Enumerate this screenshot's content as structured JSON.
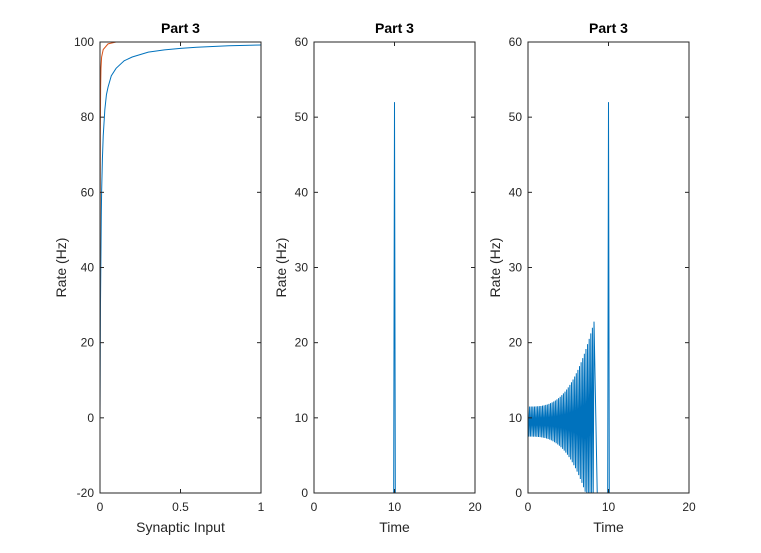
{
  "chart_data": [
    {
      "type": "line",
      "title": "Part 3",
      "xlabel": "Synaptic Input",
      "ylabel": "Rate (Hz)",
      "xlim": [
        0,
        1
      ],
      "ylim": [
        -20,
        100
      ],
      "xticks": [
        0,
        0.5,
        1
      ],
      "xtick_labels": [
        "0",
        "0.5",
        "1"
      ],
      "yticks": [
        -20,
        0,
        20,
        40,
        60,
        80,
        100
      ],
      "ytick_labels": [
        "-20",
        "0",
        "20",
        "40",
        "60",
        "80",
        "100"
      ],
      "grid": false,
      "series": [
        {
          "color": "#0072BD",
          "x": [
            0,
            0.003,
            0.005,
            0.008,
            0.01,
            0.015,
            0.02,
            0.03,
            0.04,
            0.05,
            0.07,
            0.1,
            0.15,
            0.2,
            0.3,
            0.4,
            0.5,
            0.6,
            0.7,
            0.8,
            0.9,
            1.0
          ],
          "y": [
            0,
            30,
            40,
            54,
            60,
            69,
            75,
            82,
            86,
            88,
            91,
            93,
            95,
            96,
            97.3,
            97.9,
            98.3,
            98.6,
            98.8,
            99.0,
            99.1,
            99.2
          ]
        },
        {
          "color": "#D95319",
          "x": [
            0,
            0.001,
            0.002,
            0.004,
            0.006,
            0.01,
            0.02,
            0.05,
            0.1
          ],
          "y": [
            0,
            50,
            75,
            88,
            93,
            96,
            98,
            99.5,
            100
          ]
        }
      ]
    },
    {
      "type": "line",
      "title": "Part 3",
      "xlabel": "Time",
      "ylabel": "Rate (Hz)",
      "xlim": [
        0,
        20
      ],
      "ylim": [
        0,
        60
      ],
      "xticks": [
        0,
        10,
        20
      ],
      "xtick_labels": [
        "0",
        "10",
        "20"
      ],
      "yticks": [
        0,
        10,
        20,
        30,
        40,
        50,
        60
      ],
      "ytick_labels": [
        "0",
        "10",
        "20",
        "30",
        "40",
        "50",
        "60"
      ],
      "grid": false,
      "series": [
        {
          "color": "#0072BD",
          "x": [
            0,
            9.9,
            10.0,
            10.1,
            20
          ],
          "y": [
            0,
            0,
            52,
            0,
            0
          ]
        }
      ]
    },
    {
      "type": "line",
      "title": "Part 3",
      "xlabel": "Time",
      "ylabel": "Rate (Hz)",
      "xlim": [
        0,
        20
      ],
      "ylim": [
        0,
        60
      ],
      "xticks": [
        0,
        10,
        20
      ],
      "xtick_labels": [
        "0",
        "10",
        "20"
      ],
      "yticks": [
        0,
        10,
        20,
        30,
        40,
        50,
        60
      ],
      "ytick_labels": [
        "0",
        "10",
        "20",
        "30",
        "40",
        "50",
        "60"
      ],
      "grid": false,
      "series": [
        {
          "color": "#0072BD",
          "description_points": {
            "oscillation_start": 0,
            "oscillation_end": 8.2,
            "center_rate": 9.5,
            "period": 0.2,
            "final_peak_t": 7.8,
            "final_peak_rate": 22.8,
            "drop_to_zero_t": 8.6,
            "spike_t": 10.0,
            "spike_rate": 52
          },
          "x": [
            0,
            8.6,
            9.9,
            10.0,
            10.1,
            20
          ],
          "y": [
            9.5,
            0,
            0,
            52,
            0,
            0
          ]
        }
      ]
    }
  ]
}
